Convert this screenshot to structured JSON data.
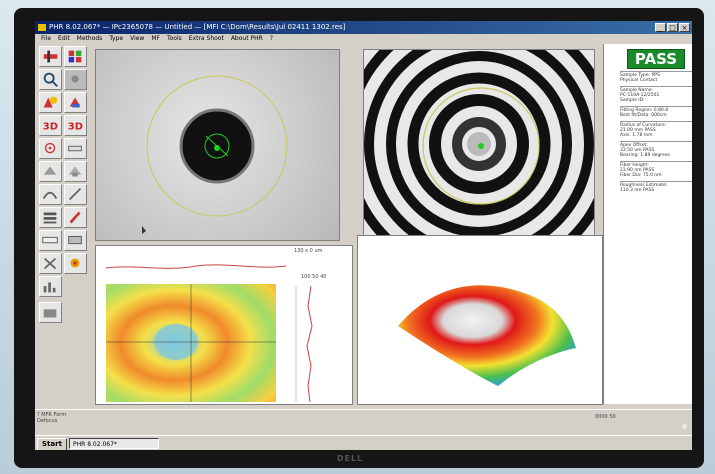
{
  "window": {
    "title": "PHR 8.02.067* — IPc2365078 — Untitled — [MFI C:\\Dom\\Results\\Jul 02411 1302.res]"
  },
  "menu": [
    "File",
    "Edit",
    "Methods",
    "Type",
    "View",
    "MF",
    "Tools",
    "Extra Shoot",
    "About PHR",
    "?"
  ],
  "status": {
    "label": "PASS",
    "color": "#1b8a2b"
  },
  "info": [
    "Sample Type: PPS\nPhysical Contact",
    "Sample Name:\nPC-110A-12/2501\nSample ID:",
    "Fitting Region: 0.80.8\nBest fit/Data: 000cm",
    "Radius of Curvature:\n21.00 mm   PASS\nAxis:   1.78 mm",
    "Apex Offset:\n33.50 um   PASS\nBearing:  1.89 degrees",
    "Fiber Height:\n23.90 nm   PASS\nFiber Dia:  75.0 nm",
    "Roughness Estimate:\n110.3 nm   PASS"
  ],
  "plot_labels": {
    "surface_scale": "130 x 0 um"
  },
  "taskbar": {
    "start": "Start",
    "task": "PHR 8.02.067*"
  },
  "statusbar": {
    "left": "? MFR Form\nDefocus    ",
    "right": "0000  50"
  },
  "brand": "DELL",
  "icons": [
    "line-profile-icon",
    "zoom-icon",
    "region-icon",
    "pan-icon",
    "3d-view-icon",
    "3d-surface-icon",
    "crosshair-icon",
    "settings-icon"
  ]
}
